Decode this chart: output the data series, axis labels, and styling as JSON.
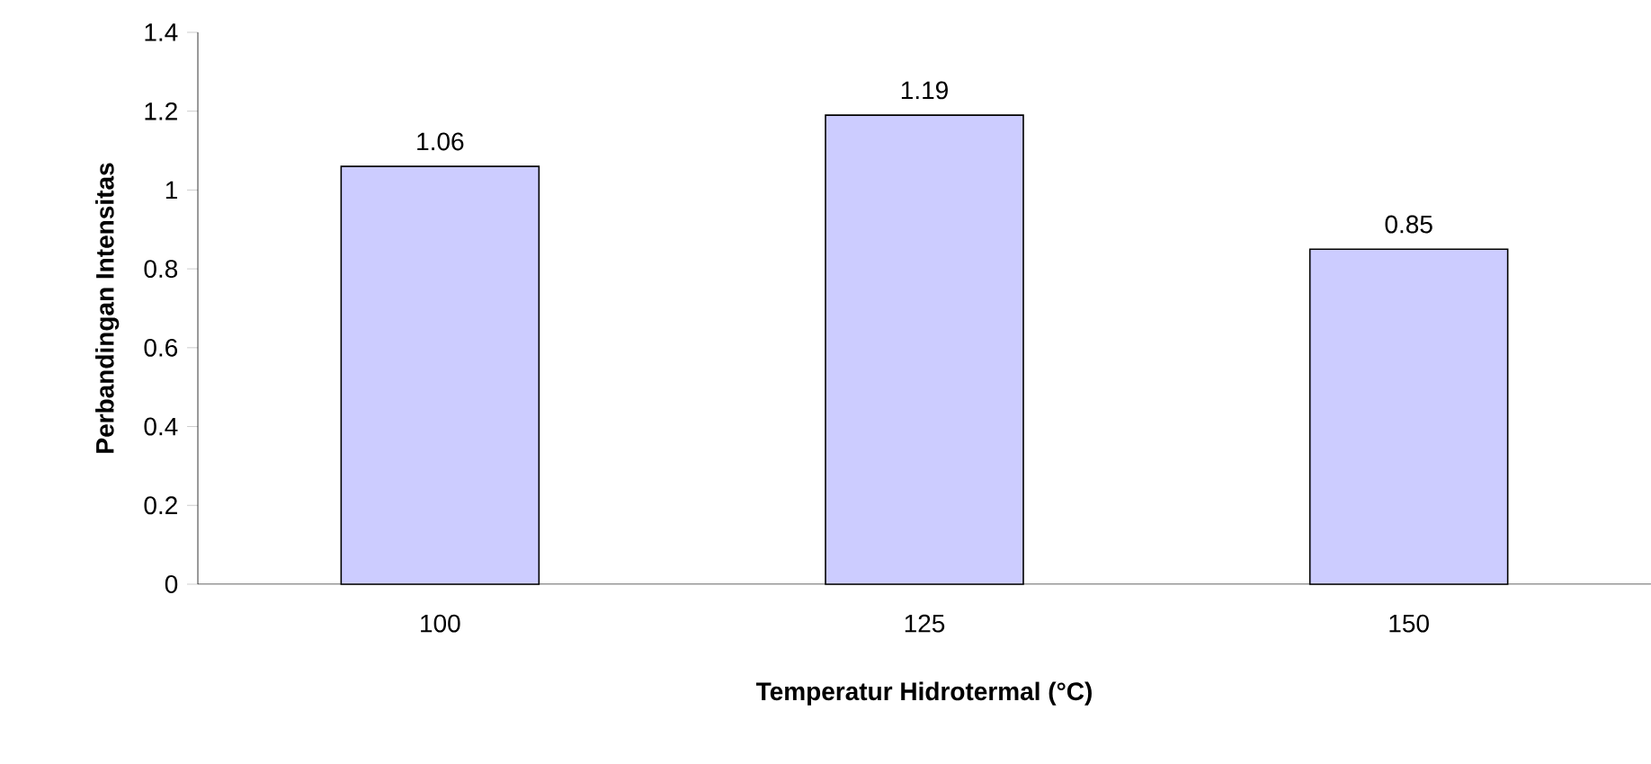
{
  "chart_data": {
    "type": "bar",
    "xlabel": "Temperatur Hidrotermal (°C)",
    "ylabel": "Perbandingan Intensitas",
    "categories": [
      "100",
      "125",
      "150"
    ],
    "values": [
      1.06,
      1.19,
      0.85
    ],
    "color": "#ccccff",
    "ylim": [
      0,
      1.4
    ],
    "yticks": [
      0,
      0.2,
      0.4,
      0.6,
      0.8,
      1,
      1.2,
      1.4
    ],
    "data_labels": true,
    "grid": false
  }
}
